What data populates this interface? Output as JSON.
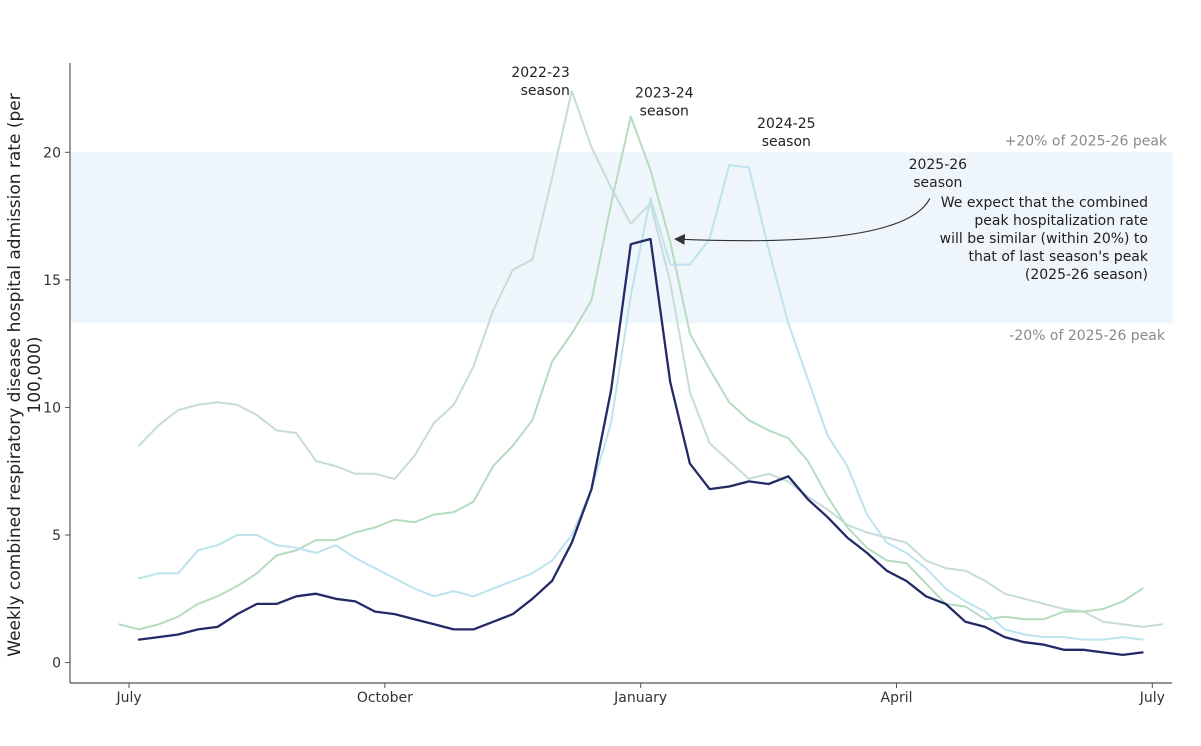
{
  "chart_data": {
    "type": "line",
    "title": "",
    "xlabel": "",
    "ylabel": "Weekly combined respiratory disease hospital admission rate (per 100,000)",
    "ylabel_lines": [
      "Weekly combined respiratory disease hospital admission rate (per",
      "100,000)"
    ],
    "x_ticks": [
      {
        "label": "July",
        "week": 0
      },
      {
        "label": "October",
        "week": 13
      },
      {
        "label": "January",
        "week": 26
      },
      {
        "label": "April",
        "week": 39
      },
      {
        "label": "July",
        "week": 52
      }
    ],
    "y_ticks": [
      0,
      5,
      10,
      15,
      20
    ],
    "ylim": [
      -0.8,
      23.5
    ],
    "xlim": [
      -3,
      53
    ],
    "grid": false,
    "band": {
      "low": 13.3,
      "high": 20.0,
      "color": "#eef5fb",
      "upper_label": "+20% of 2025-26 peak",
      "lower_label": "-20% of 2025-26 peak"
    },
    "series": [
      {
        "name": "2022-23 season",
        "color": "#c6ddd7",
        "width": 2,
        "start_week": 0.5,
        "values": [
          8.5,
          9.3,
          9.9,
          10.1,
          10.2,
          10.1,
          9.7,
          9.1,
          9.0,
          7.9,
          7.7,
          7.4,
          7.4,
          7.2,
          8.1,
          9.4,
          10.1,
          11.6,
          13.8,
          15.4,
          15.8,
          19.0,
          22.4,
          20.2,
          18.6,
          17.2,
          18.0,
          14.9,
          10.6,
          8.6,
          7.9,
          7.2,
          7.4,
          7.1,
          6.5,
          6.0,
          5.4,
          5.1,
          4.9,
          4.7,
          4.0,
          3.7,
          3.6,
          3.2,
          2.7,
          2.5,
          2.3,
          2.1,
          2.0,
          1.6,
          1.5,
          1.4,
          1.5
        ]
      },
      {
        "name": "2023-24 season",
        "color": "#b6dcbf",
        "width": 2,
        "start_week": -0.5,
        "values": [
          1.5,
          1.3,
          1.5,
          1.8,
          2.3,
          2.6,
          3.0,
          3.5,
          4.2,
          4.4,
          4.8,
          4.8,
          5.1,
          5.3,
          5.6,
          5.5,
          5.8,
          5.9,
          6.3,
          7.7,
          8.5,
          9.5,
          11.8,
          12.9,
          14.2,
          18.0,
          21.4,
          19.3,
          16.5,
          12.9,
          11.5,
          10.2,
          9.5,
          9.1,
          8.8,
          7.9,
          6.5,
          5.3,
          4.5,
          4.0,
          3.9,
          3.1,
          2.3,
          2.2,
          1.7,
          1.8,
          1.7,
          1.7,
          2.0,
          2.0,
          2.1,
          2.4,
          2.9
        ]
      },
      {
        "name": "2024-25 season",
        "color": "#bde3ee",
        "width": 2,
        "start_week": 0.5,
        "values": [
          3.3,
          3.5,
          3.5,
          4.4,
          4.6,
          5.0,
          5.0,
          4.6,
          4.5,
          4.3,
          4.6,
          4.1,
          3.7,
          3.3,
          2.9,
          2.6,
          2.8,
          2.6,
          2.9,
          3.2,
          3.5,
          4.0,
          5.0,
          6.8,
          9.4,
          14.4,
          18.2,
          15.6,
          15.6,
          16.6,
          19.5,
          19.4,
          16.2,
          13.3,
          11.1,
          8.9,
          7.7,
          5.8,
          4.7,
          4.3,
          3.7,
          2.9,
          2.4,
          2.0,
          1.3,
          1.1,
          1.0,
          1.0,
          0.9,
          0.9,
          1.0,
          0.9
        ]
      },
      {
        "name": "2025-26 season",
        "color": "#232a66",
        "width": 2.3,
        "start_week": 0.5,
        "values": [
          0.9,
          1.0,
          1.1,
          1.3,
          1.4,
          1.9,
          2.3,
          2.3,
          2.6,
          2.7,
          2.5,
          2.4,
          2.0,
          1.9,
          1.7,
          1.5,
          1.3,
          1.3,
          1.6,
          1.9,
          2.5,
          3.2,
          4.7,
          6.8,
          10.7,
          16.4,
          16.6,
          11.0,
          7.8,
          6.8,
          6.9,
          7.1,
          7.0,
          7.3,
          6.4,
          5.7,
          4.9,
          4.3,
          3.6,
          3.2,
          2.6,
          2.3,
          1.6,
          1.4,
          1.0,
          0.8,
          0.7,
          0.5,
          0.5,
          0.4,
          0.3,
          0.4
        ]
      }
    ],
    "season_labels": [
      {
        "series": "2022-23 season",
        "lines": [
          "2022-23",
          "season"
        ],
        "align": "end",
        "week": 22.4,
        "y_top": 22.4
      },
      {
        "series": "2023-24 season",
        "lines": [
          "2023-24",
          "season"
        ],
        "align": "middle",
        "week": 27.2,
        "y_top": 21.6
      },
      {
        "series": "2024-25 season",
        "lines": [
          "2024-25",
          "season"
        ],
        "align": "middle",
        "week": 33.4,
        "y_top": 20.4
      },
      {
        "series": "2025-26 season",
        "lines": [
          "2025-26",
          "season"
        ],
        "align": "middle",
        "week": 41.1,
        "y_top": 18.8
      }
    ],
    "arrow": {
      "from_week": 40.7,
      "from_y": 18.2,
      "to_week": 27.6,
      "to_y": 16.6
    },
    "annotation": {
      "lines": [
        "We expect that the combined",
        "peak hospitalization rate",
        "will be similar (within 20%) to",
        "that of last season's peak",
        "(2025-26 season)"
      ]
    }
  }
}
